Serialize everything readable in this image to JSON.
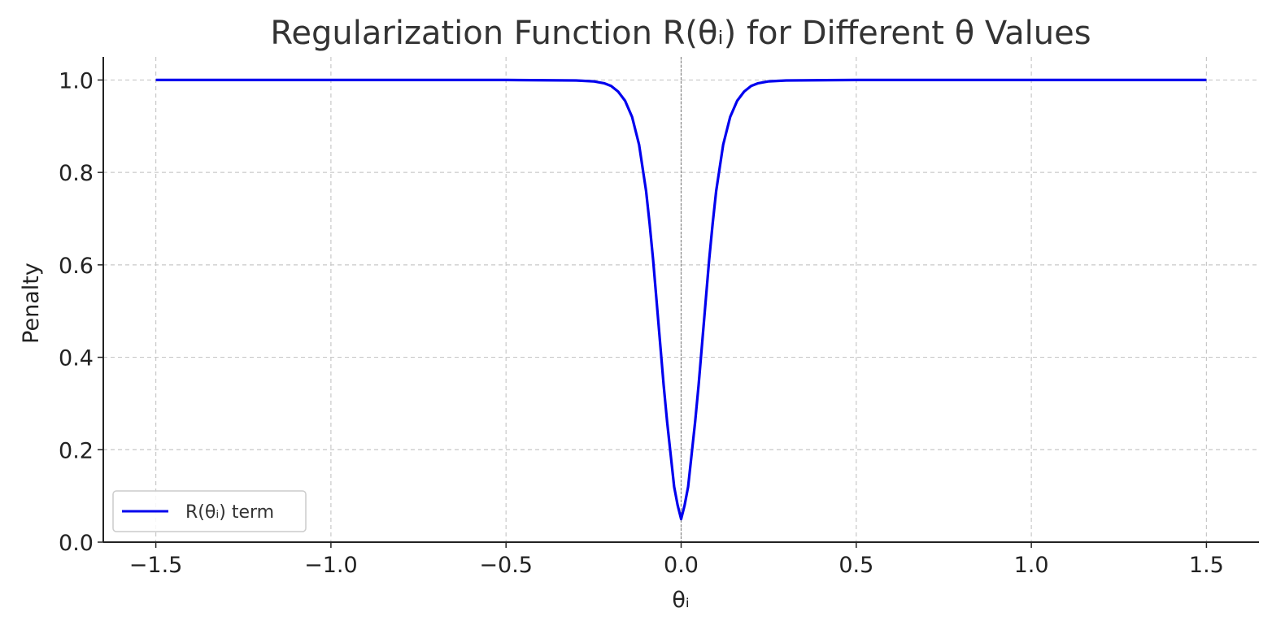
{
  "chart_data": {
    "type": "line",
    "title": "Regularization Function R(θᵢ) for Different θ Values",
    "xlabel": "θᵢ",
    "ylabel": "Penalty",
    "xlim": [
      -1.65,
      1.65
    ],
    "ylim": [
      0.0,
      1.05
    ],
    "grid": true,
    "legend_position": "lower-left",
    "x_ticks": [
      -1.5,
      -1.0,
      -0.5,
      0.0,
      0.5,
      1.0,
      1.5
    ],
    "x_tick_labels": [
      "−1.5",
      "−1.0",
      "−0.5",
      "0.0",
      "0.5",
      "1.0",
      "1.5"
    ],
    "y_ticks": [
      0.0,
      0.2,
      0.4,
      0.6,
      0.8,
      1.0
    ],
    "y_tick_labels": [
      "0.0",
      "0.2",
      "0.4",
      "0.6",
      "0.8",
      "1.0"
    ],
    "vertical_reference_x": 0.0,
    "series": [
      {
        "name": "R(θᵢ) term",
        "color": "#0000ee",
        "x": [
          -1.5,
          -0.5,
          -0.3,
          -0.25,
          -0.22,
          -0.2,
          -0.18,
          -0.16,
          -0.14,
          -0.12,
          -0.1,
          -0.09,
          -0.08,
          -0.07,
          -0.06,
          -0.05,
          -0.04,
          -0.03,
          -0.02,
          -0.01,
          0.0,
          0.01,
          0.02,
          0.03,
          0.04,
          0.05,
          0.06,
          0.07,
          0.08,
          0.09,
          0.1,
          0.12,
          0.14,
          0.16,
          0.18,
          0.2,
          0.22,
          0.25,
          0.3,
          0.5,
          1.5
        ],
        "y": [
          1.0,
          1.0,
          0.999,
          0.997,
          0.993,
          0.987,
          0.975,
          0.955,
          0.92,
          0.86,
          0.76,
          0.69,
          0.61,
          0.52,
          0.43,
          0.34,
          0.26,
          0.19,
          0.12,
          0.08,
          0.05,
          0.08,
          0.12,
          0.19,
          0.26,
          0.34,
          0.43,
          0.52,
          0.61,
          0.69,
          0.76,
          0.86,
          0.92,
          0.955,
          0.975,
          0.987,
          0.993,
          0.997,
          0.999,
          1.0,
          1.0
        ]
      }
    ]
  }
}
